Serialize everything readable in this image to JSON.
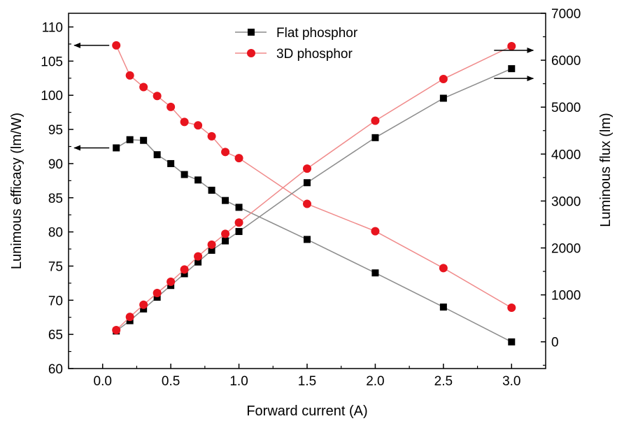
{
  "chart_data": {
    "type": "line",
    "xlabel": "Forward current (A)",
    "ylabel_left": "Lunimous efficacy (lm/W)",
    "ylabel_right": "Luminous flux (lm)",
    "xlim": [
      -0.25,
      3.25
    ],
    "ylim_left": [
      60,
      112
    ],
    "ylim_right": [
      -570,
      7000
    ],
    "x_ticks": [
      "0.0",
      "0.5",
      "1.0",
      "1.5",
      "2.0",
      "2.5",
      "3.0"
    ],
    "y_left_ticks": [
      "60",
      "65",
      "70",
      "75",
      "80",
      "85",
      "90",
      "95",
      "100",
      "105",
      "110"
    ],
    "y_right_ticks": [
      "0",
      "1000",
      "2000",
      "3000",
      "4000",
      "5000",
      "6000",
      "7000"
    ],
    "grid": false,
    "legend_position": "top-center",
    "series": [
      {
        "name": "Flat phosphor",
        "axis": "left",
        "marker": "square",
        "color": "#000000",
        "line_color": "#8c8c8c",
        "x": [
          0.1,
          0.2,
          0.3,
          0.4,
          0.5,
          0.6,
          0.7,
          0.8,
          0.9,
          1.0,
          1.5,
          2.0,
          2.5,
          3.0
        ],
        "values": [
          92.3,
          93.5,
          93.4,
          91.3,
          90.0,
          88.4,
          87.6,
          86.1,
          84.6,
          83.6,
          78.9,
          74.0,
          69.0,
          63.9
        ]
      },
      {
        "name": "3D phosphor",
        "axis": "left",
        "marker": "circle",
        "color": "#e8141e",
        "line_color": "#f08a8a",
        "x": [
          0.1,
          0.2,
          0.3,
          0.4,
          0.5,
          0.6,
          0.7,
          0.8,
          0.9,
          1.0,
          1.5,
          2.0,
          2.5,
          3.0
        ],
        "values": [
          107.3,
          102.9,
          101.2,
          99.9,
          98.3,
          96.1,
          95.6,
          94.0,
          91.7,
          90.8,
          84.1,
          80.1,
          74.7,
          68.9
        ]
      },
      {
        "name": "Flat phosphor",
        "axis": "right",
        "marker": "square",
        "color": "#000000",
        "line_color": "#8c8c8c",
        "x": [
          0.1,
          0.2,
          0.3,
          0.4,
          0.5,
          0.6,
          0.7,
          0.8,
          0.9,
          1.0,
          1.5,
          2.0,
          2.5,
          3.0
        ],
        "values": [
          230,
          450,
          700,
          950,
          1200,
          1450,
          1700,
          1950,
          2150,
          2350,
          3390,
          4350,
          5190,
          5820
        ]
      },
      {
        "name": "3D phosphor",
        "axis": "right",
        "marker": "circle",
        "color": "#e8141e",
        "line_color": "#f08a8a",
        "x": [
          0.1,
          0.2,
          0.3,
          0.4,
          0.5,
          0.6,
          0.7,
          0.8,
          0.9,
          1.0,
          1.5,
          2.0,
          2.5,
          3.0
        ],
        "values": [
          250,
          530,
          790,
          1040,
          1280,
          1540,
          1820,
          2070,
          2300,
          2540,
          3690,
          4710,
          5600,
          6300
        ]
      }
    ],
    "annotations": [
      {
        "type": "arrow",
        "direction": "left",
        "points_to": "left-axis",
        "series": "3D phosphor"
      },
      {
        "type": "arrow",
        "direction": "left",
        "points_to": "left-axis",
        "series": "Flat phosphor"
      },
      {
        "type": "arrow",
        "direction": "right",
        "points_to": "right-axis",
        "series": "3D phosphor"
      },
      {
        "type": "arrow",
        "direction": "right",
        "points_to": "right-axis",
        "series": "Flat phosphor"
      }
    ]
  }
}
